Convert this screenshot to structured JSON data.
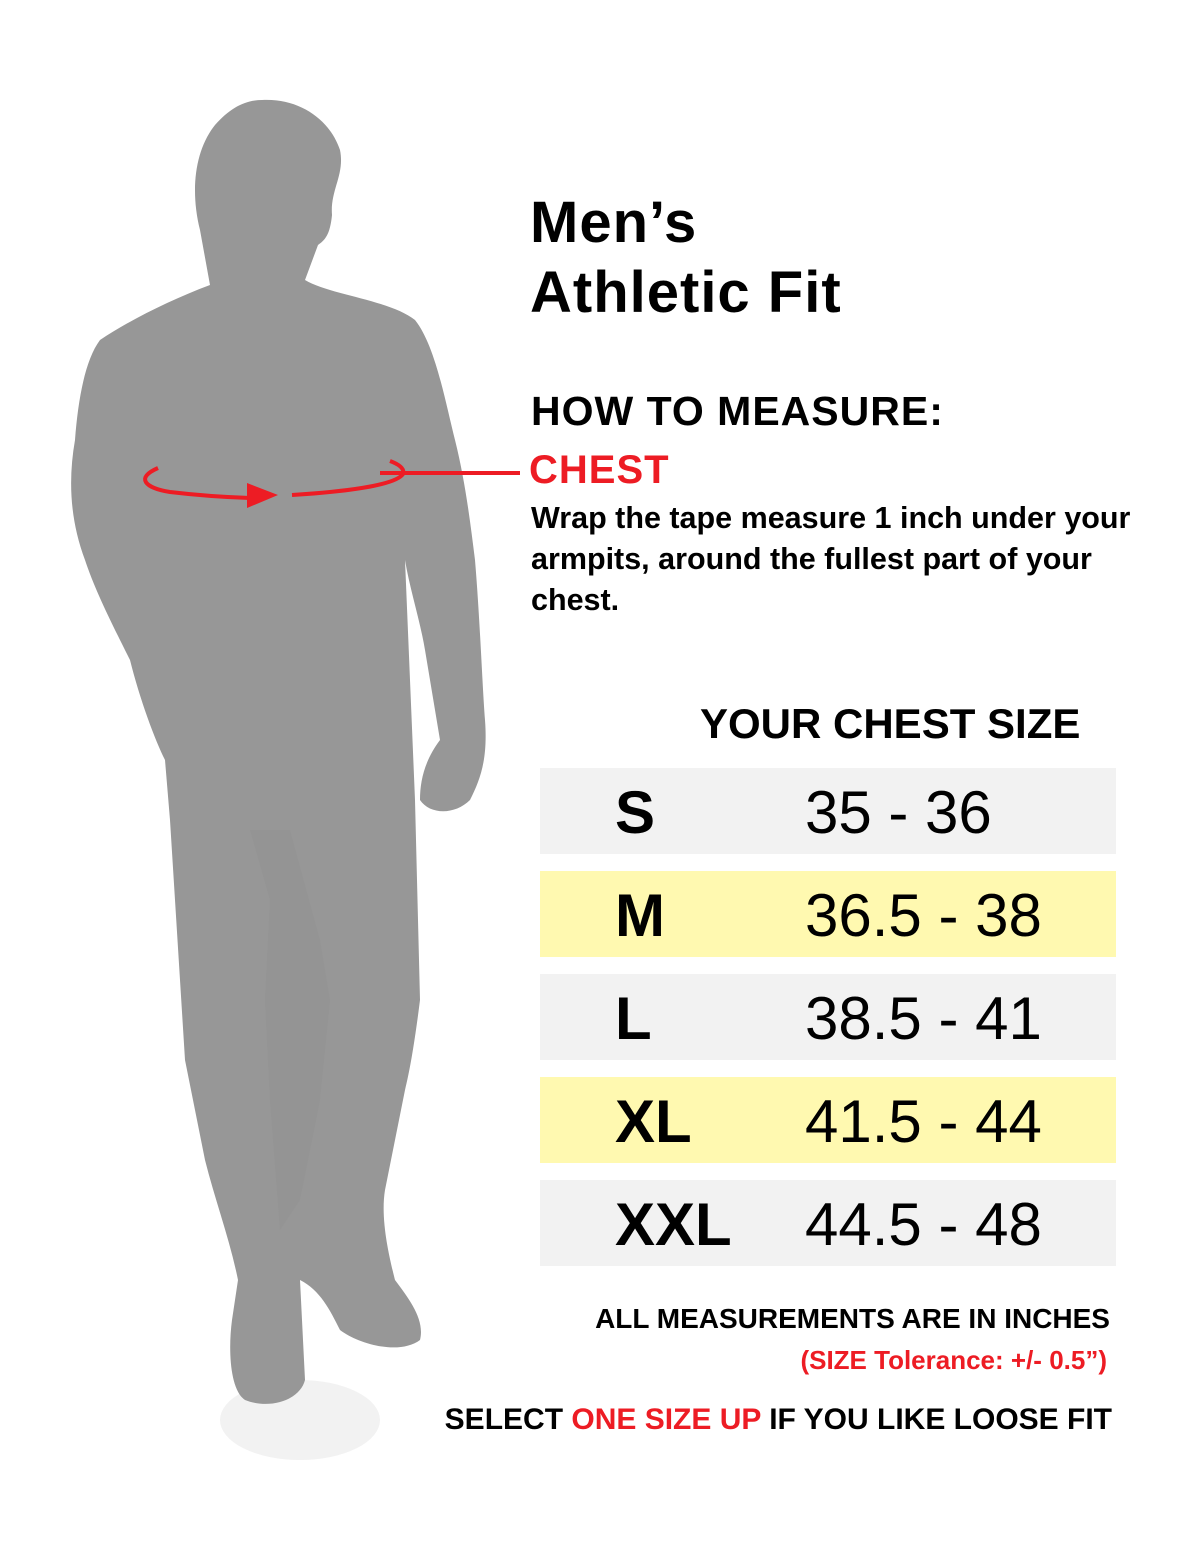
{
  "title": {
    "line1": "Men’s",
    "line2": "Athletic Fit"
  },
  "how_to_measure": {
    "heading": "HOW TO MEASURE:",
    "label": "CHEST",
    "description": "Wrap the tape measure 1 inch under your armpits, around the fullest part of your chest."
  },
  "size_table": {
    "heading": "YOUR CHEST SIZE",
    "rows": [
      {
        "size": "S",
        "range": "35 - 36",
        "highlight": false
      },
      {
        "size": "M",
        "range": "36.5 - 38",
        "highlight": true
      },
      {
        "size": "L",
        "range": "38.5 - 41",
        "highlight": false
      },
      {
        "size": "XL",
        "range": "41.5 - 44",
        "highlight": true
      },
      {
        "size": "XXL",
        "range": "44.5 - 48",
        "highlight": false
      }
    ]
  },
  "notes": {
    "units": "ALL MEASUREMENTS ARE IN INCHES",
    "tolerance": "(SIZE Tolerance: +/- 0.5”)",
    "advice_pre": "SELECT ",
    "advice_highlight": "ONE SIZE UP",
    "advice_post": " IF YOU LIKE LOOSE FIT"
  },
  "colors": {
    "accent_red": "#ed1c24",
    "silhouette": "#979797",
    "row_gray": "#f2f2f2",
    "row_yellow": "#fff9b0"
  }
}
